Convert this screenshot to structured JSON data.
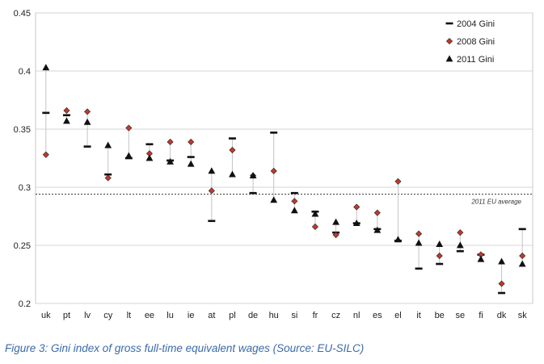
{
  "caption": "Figure 3: Gini index of gross full-time equivalent wages (Source: EU-SILC)",
  "chart_data": {
    "type": "scatter",
    "title": "",
    "xlabel": "",
    "ylabel": "",
    "ylim": [
      0.2,
      0.45
    ],
    "yticks": [
      0.2,
      0.25,
      0.3,
      0.35,
      0.4,
      0.45
    ],
    "ytick_labels": [
      "0.2",
      "0.25",
      "0.3",
      "0.35",
      "0.4",
      "0.45"
    ],
    "grid": true,
    "legend_position": "top-right",
    "categories": [
      "uk",
      "pt",
      "lv",
      "cy",
      "lt",
      "ee",
      "lu",
      "ie",
      "at",
      "pl",
      "de",
      "hu",
      "si",
      "fr",
      "cz",
      "nl",
      "es",
      "el",
      "it",
      "be",
      "se",
      "fi",
      "dk",
      "sk"
    ],
    "series": [
      {
        "name": "2004 Gini",
        "marker": "dash",
        "color": "#111111",
        "values": [
          0.364,
          0.362,
          0.335,
          0.311,
          0.325,
          0.337,
          0.323,
          0.326,
          0.271,
          0.342,
          0.295,
          0.347,
          0.295,
          0.279,
          0.261,
          0.269,
          0.264,
          0.254,
          0.23,
          0.234,
          0.245,
          0.242,
          0.209,
          0.264
        ]
      },
      {
        "name": "2008 Gini",
        "marker": "diamond",
        "color": "#c0392b",
        "values": [
          0.328,
          0.366,
          0.365,
          0.308,
          0.351,
          0.329,
          0.339,
          0.339,
          0.297,
          0.332,
          0.31,
          0.314,
          0.288,
          0.266,
          0.259,
          0.283,
          0.278,
          0.305,
          0.26,
          0.241,
          0.261,
          0.242,
          0.217,
          0.241
        ]
      },
      {
        "name": "2011 Gini",
        "marker": "triangle",
        "color": "#111111",
        "values": [
          0.403,
          0.357,
          0.356,
          0.336,
          0.327,
          0.325,
          0.322,
          0.32,
          0.314,
          0.311,
          0.31,
          0.289,
          0.28,
          0.277,
          0.27,
          0.269,
          0.263,
          0.255,
          0.252,
          0.251,
          0.25,
          0.238,
          0.236,
          0.234
        ]
      }
    ],
    "reference_line": {
      "value": 0.294,
      "label": "2011 EU average",
      "style": "dashed"
    }
  }
}
